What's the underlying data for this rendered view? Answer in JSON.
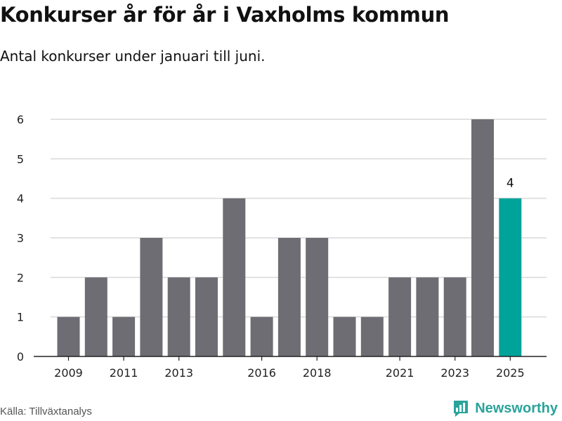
{
  "header": {
    "title": "Konkurser år för år i Vaxholms kommun",
    "subtitle": "Antal konkurser under januari till juni."
  },
  "footer": {
    "source": "Källa: Tillväxtanalys",
    "brand": "Newsworthy"
  },
  "colors": {
    "bar": "#6e6d73",
    "highlight": "#00a39a",
    "grid": "#d9d9d9",
    "axis": "#222222"
  },
  "chart_data": {
    "type": "bar",
    "title": "Konkurser år för år i Vaxholms kommun",
    "subtitle": "Antal konkurser under januari till juni.",
    "categories": [
      "2009",
      "2010",
      "2011",
      "2012",
      "2013",
      "2014",
      "2015",
      "2016",
      "2017",
      "2018",
      "2019",
      "2020",
      "2021",
      "2022",
      "2023",
      "2024",
      "2025"
    ],
    "values": [
      1,
      2,
      1,
      3,
      2,
      2,
      4,
      1,
      3,
      3,
      1,
      1,
      2,
      2,
      2,
      6,
      4
    ],
    "x_tick_labels": [
      "2009",
      "2011",
      "2013",
      "2016",
      "2018",
      "2021",
      "2023",
      "2025"
    ],
    "y_ticks": [
      0,
      1,
      2,
      3,
      4,
      5,
      6
    ],
    "ylim": [
      0,
      6
    ],
    "xlabel": "",
    "ylabel": "",
    "grid": true,
    "highlight_category": "2025",
    "data_labels": [
      {
        "category": "2025",
        "text": "4"
      }
    ]
  }
}
